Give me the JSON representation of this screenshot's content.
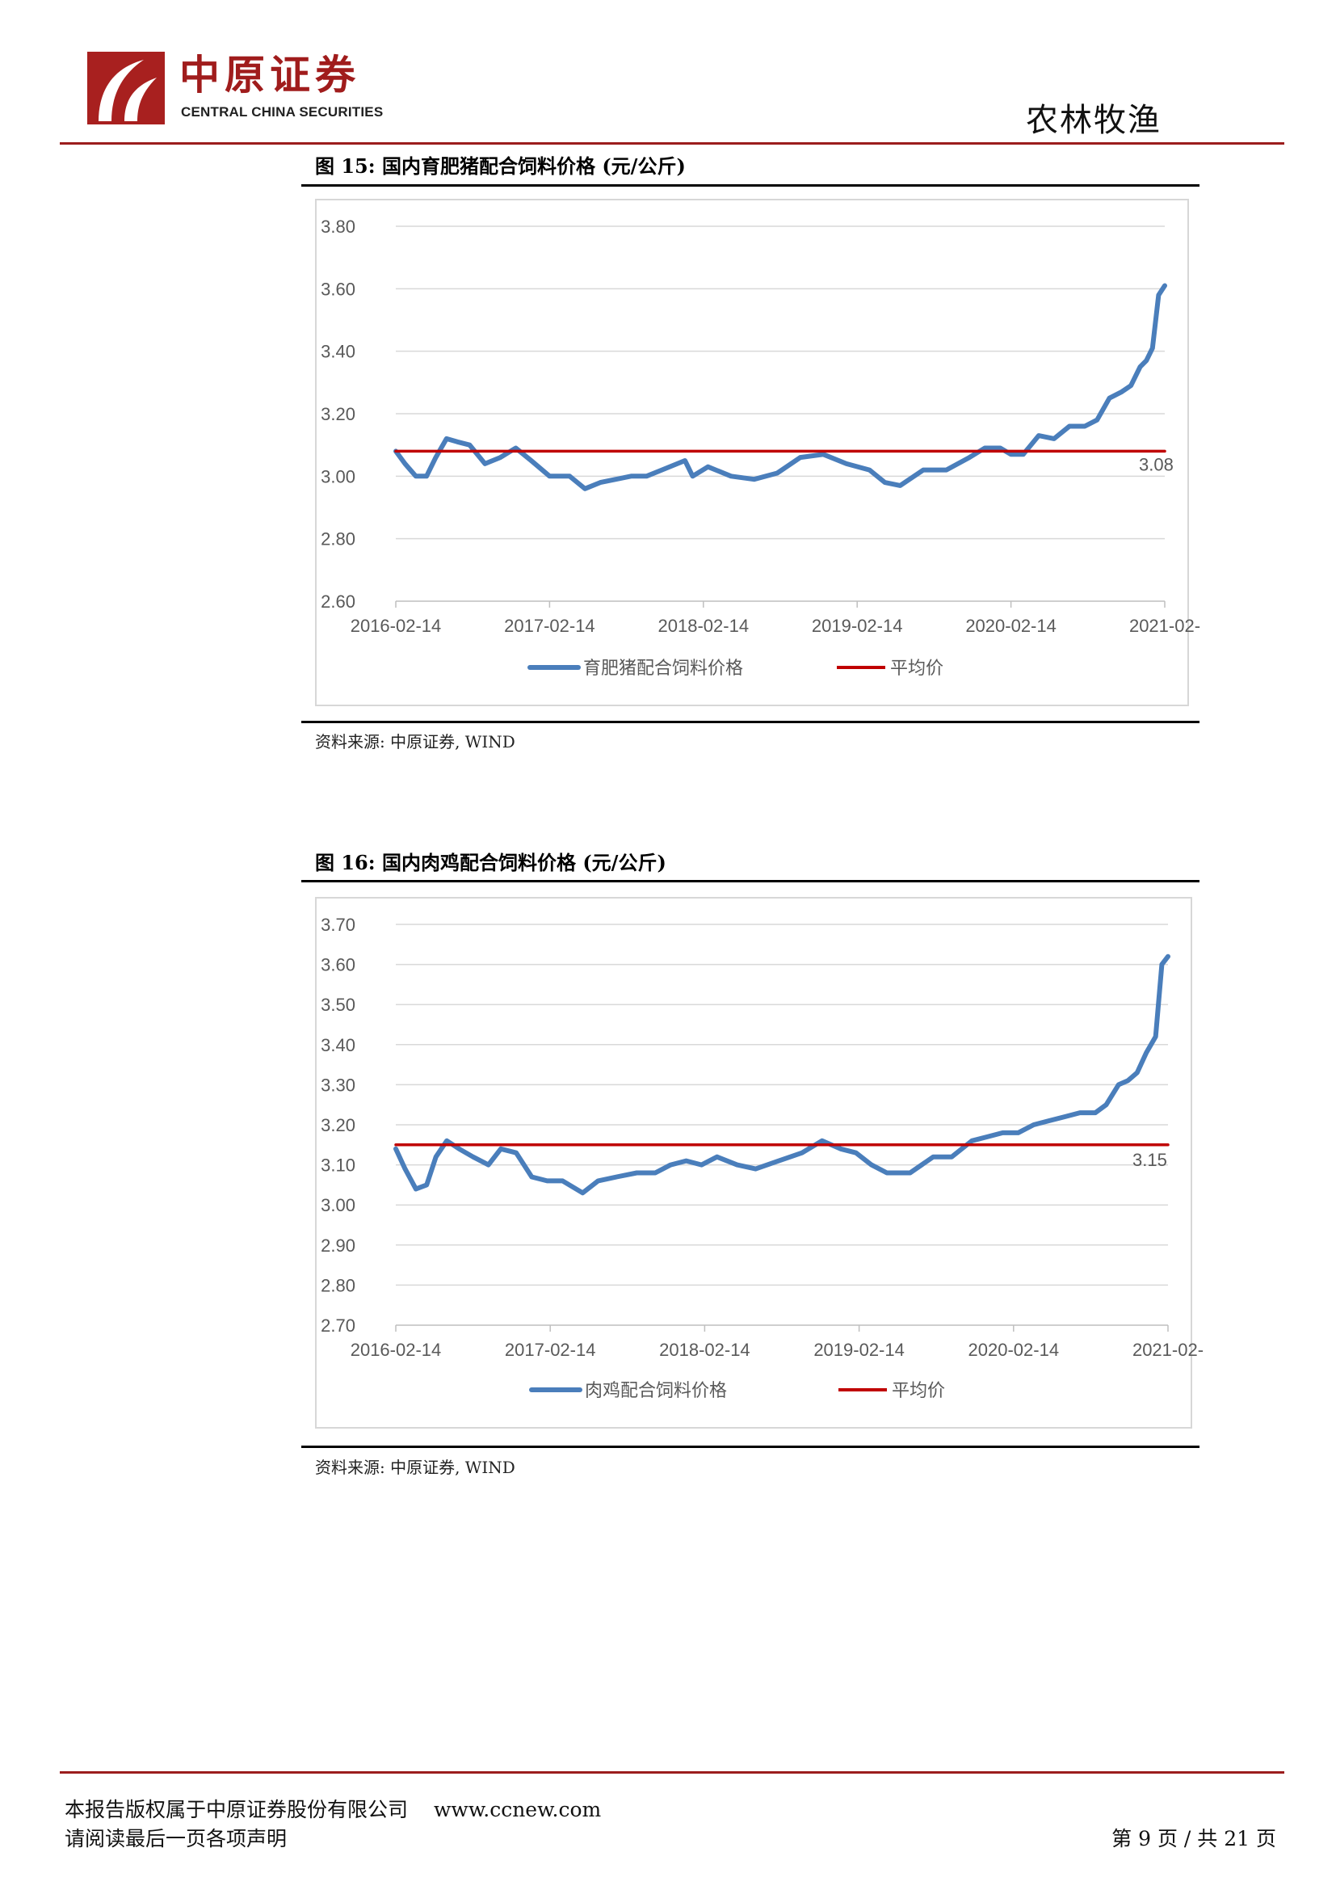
{
  "header": {
    "brand_cn": "中原证券",
    "brand_en": "CENTRAL CHINA SECURITIES",
    "section": "农林牧渔",
    "accent_color": "#9b1d1d"
  },
  "figures": [
    {
      "title": "图 15:  国内育肥猪配合饲料价格 (元/公斤)",
      "source": "资料来源:  中原证券, WIND",
      "legend_series": "育肥猪配合饲料价格",
      "legend_avg": "平均价",
      "avg_label": "3.08"
    },
    {
      "title": "图 16:  国内肉鸡配合饲料价格 (元/公斤)",
      "source": "资料来源:  中原证券, WIND",
      "legend_series": "肉鸡配合饲料价格",
      "legend_avg": "平均价",
      "avg_label": "3.15"
    }
  ],
  "chart_data": [
    {
      "type": "line",
      "ylim": [
        2.6,
        3.8
      ],
      "yticks": [
        "3.80",
        "3.60",
        "3.40",
        "3.20",
        "3.00",
        "2.80",
        "2.60"
      ],
      "xlim": [
        2016.12,
        2021.12
      ],
      "xticks": [
        "2016-02-14",
        "2017-02-14",
        "2018-02-14",
        "2019-02-14",
        "2020-02-14",
        "2021-02-"
      ],
      "grid": true,
      "legend_position": "bottom",
      "series": [
        {
          "name": "育肥猪配合饲料价格",
          "color": "#4a7ebb",
          "x": [
            2016.12,
            2016.18,
            2016.25,
            2016.32,
            2016.38,
            2016.45,
            2016.52,
            2016.6,
            2016.7,
            2016.8,
            2016.9,
            2017.0,
            2017.12,
            2017.25,
            2017.35,
            2017.45,
            2017.55,
            2017.65,
            2017.75,
            2017.85,
            2018.0,
            2018.05,
            2018.15,
            2018.3,
            2018.45,
            2018.6,
            2018.75,
            2018.9,
            2019.05,
            2019.2,
            2019.3,
            2019.4,
            2019.55,
            2019.7,
            2019.85,
            2019.95,
            2020.05,
            2020.12,
            2020.2,
            2020.3,
            2020.4,
            2020.5,
            2020.6,
            2020.68,
            2020.76,
            2020.84,
            2020.9,
            2020.96,
            2021.0,
            2021.04,
            2021.08,
            2021.12
          ],
          "values": [
            3.08,
            3.04,
            3.0,
            3.0,
            3.06,
            3.12,
            3.11,
            3.1,
            3.04,
            3.06,
            3.09,
            3.05,
            3.0,
            3.0,
            2.96,
            2.98,
            2.99,
            3.0,
            3.0,
            3.02,
            3.05,
            3.0,
            3.03,
            3.0,
            2.99,
            3.01,
            3.06,
            3.07,
            3.04,
            3.02,
            2.98,
            2.97,
            3.02,
            3.02,
            3.06,
            3.09,
            3.09,
            3.07,
            3.07,
            3.13,
            3.12,
            3.16,
            3.16,
            3.18,
            3.25,
            3.27,
            3.29,
            3.35,
            3.37,
            3.41,
            3.58,
            3.61
          ]
        },
        {
          "name": "平均价",
          "color": "#c00000",
          "x": [
            2016.12,
            2021.12
          ],
          "values": [
            3.08,
            3.08
          ]
        }
      ]
    },
    {
      "type": "line",
      "ylim": [
        2.7,
        3.7
      ],
      "yticks": [
        "3.70",
        "3.60",
        "3.50",
        "3.40",
        "3.30",
        "3.20",
        "3.10",
        "3.00",
        "2.90",
        "2.80",
        "2.70"
      ],
      "xlim": [
        2016.12,
        2021.12
      ],
      "xticks": [
        "2016-02-14",
        "2017-02-14",
        "2018-02-14",
        "2019-02-14",
        "2020-02-14",
        "2021-02-"
      ],
      "grid": true,
      "legend_position": "bottom",
      "series": [
        {
          "name": "肉鸡配合饲料价格",
          "color": "#4a7ebb",
          "x": [
            2016.12,
            2016.18,
            2016.25,
            2016.32,
            2016.38,
            2016.45,
            2016.53,
            2016.62,
            2016.72,
            2016.8,
            2016.9,
            2017.0,
            2017.1,
            2017.2,
            2017.33,
            2017.43,
            2017.55,
            2017.68,
            2017.8,
            2017.9,
            2018.0,
            2018.1,
            2018.2,
            2018.33,
            2018.45,
            2018.6,
            2018.75,
            2018.88,
            2019.0,
            2019.1,
            2019.2,
            2019.3,
            2019.45,
            2019.6,
            2019.72,
            2019.85,
            2019.95,
            2020.05,
            2020.15,
            2020.25,
            2020.35,
            2020.45,
            2020.55,
            2020.65,
            2020.72,
            2020.8,
            2020.86,
            2020.92,
            2020.98,
            2021.04,
            2021.08,
            2021.12
          ],
          "values": [
            3.14,
            3.09,
            3.04,
            3.05,
            3.12,
            3.16,
            3.14,
            3.12,
            3.1,
            3.14,
            3.13,
            3.07,
            3.06,
            3.06,
            3.03,
            3.06,
            3.07,
            3.08,
            3.08,
            3.1,
            3.11,
            3.1,
            3.12,
            3.1,
            3.09,
            3.11,
            3.13,
            3.16,
            3.14,
            3.13,
            3.1,
            3.08,
            3.08,
            3.12,
            3.12,
            3.16,
            3.17,
            3.18,
            3.18,
            3.2,
            3.21,
            3.22,
            3.23,
            3.23,
            3.25,
            3.3,
            3.31,
            3.33,
            3.38,
            3.42,
            3.6,
            3.62
          ]
        },
        {
          "name": "平均价",
          "color": "#c00000",
          "x": [
            2016.12,
            2021.12
          ],
          "values": [
            3.15,
            3.15
          ]
        }
      ]
    }
  ],
  "footer": {
    "copyright": "本报告版权属于中原证券股份有限公司",
    "url": "www.ccnew.com",
    "disclaimer": "请阅读最后一页各项声明",
    "page": "第 9 页  /  共 21 页"
  }
}
